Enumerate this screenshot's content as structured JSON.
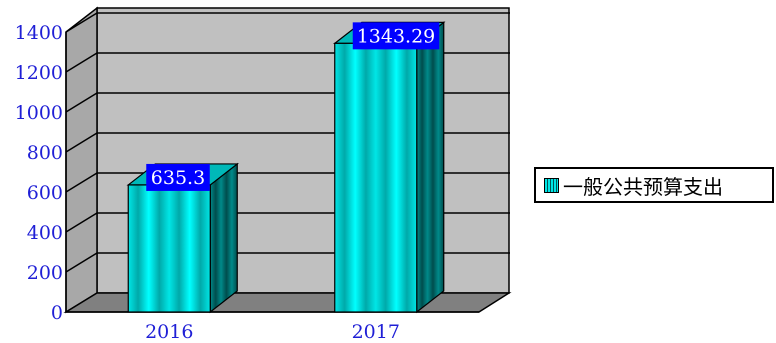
{
  "chart_data": {
    "type": "bar",
    "categories": [
      "2016",
      "2017"
    ],
    "series": [
      {
        "name": "一般公共预算支出",
        "values": [
          635.3,
          1343.29
        ],
        "labels": [
          "635.3",
          "1343.29"
        ]
      }
    ],
    "yticks": [
      "0",
      "200",
      "400",
      "600",
      "800",
      "1000",
      "1200",
      "1400"
    ],
    "ylim": [
      0,
      1400
    ],
    "grid": true,
    "legend_position": "right",
    "three_d": true,
    "colors": {
      "bar_face": "#00e5e5",
      "bar_dark": "#006b6b",
      "wall": "#c0c0c0",
      "floor": "#808080",
      "label_bg": "#0000ff",
      "axis_text": "#1f1fd6"
    }
  }
}
